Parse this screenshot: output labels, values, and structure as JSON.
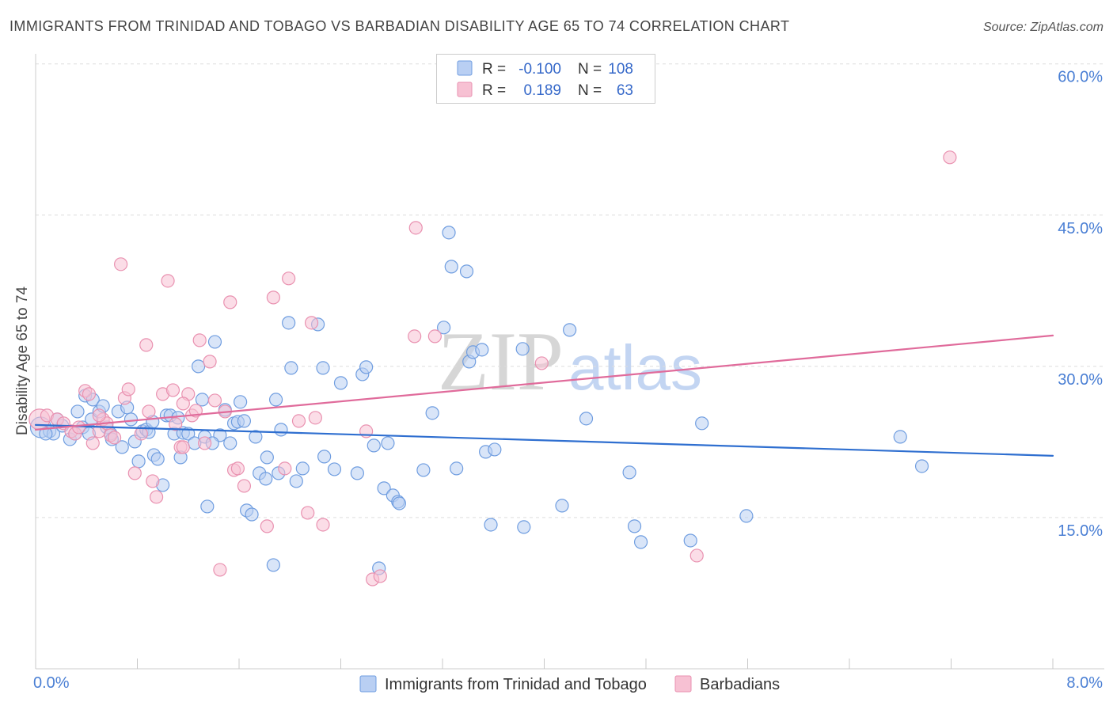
{
  "chart_data": {
    "type": "scatter",
    "title": "IMMIGRANTS FROM TRINIDAD AND TOBAGO VS BARBADIAN DISABILITY AGE 65 TO 74 CORRELATION CHART",
    "source": "Source: ZipAtlas.com",
    "xlabel": "",
    "ylabel": "Disability Age 65 to 74",
    "xlim": [
      0,
      8
    ],
    "ylim": [
      0,
      61
    ],
    "xticks": [
      0,
      0.8,
      1.6,
      2.4,
      3.2,
      4.0,
      4.8,
      5.6,
      6.4,
      7.2,
      8.0
    ],
    "xtick_labels": [
      "0.0%",
      "8.0%"
    ],
    "yticks": [
      15,
      30,
      45,
      60
    ],
    "ytick_labels": [
      "15.0%",
      "30.0%",
      "45.0%",
      "60.0%"
    ],
    "grid": true,
    "legend": {
      "location": "top-center",
      "r_label": "R =",
      "n_label": "N ="
    },
    "series": [
      {
        "name": "Immigrants from Trinidad and Tobago",
        "color": "#6f9de0",
        "fill": "#b9cff3",
        "line_color": "#2f6fd0",
        "r": "-0.100",
        "n": 108,
        "x": [
          0.04,
          0.11,
          0.14,
          0.21,
          0.27,
          0.33,
          0.37,
          0.39,
          0.44,
          0.45,
          0.5,
          0.53,
          0.56,
          0.59,
          0.6,
          0.65,
          0.68,
          0.72,
          0.75,
          0.78,
          0.81,
          0.84,
          0.87,
          0.89,
          0.93,
          0.96,
          1.0,
          1.03,
          1.06,
          1.09,
          1.12,
          1.14,
          1.16,
          1.2,
          1.25,
          1.28,
          1.31,
          1.33,
          1.35,
          1.41,
          1.45,
          1.49,
          1.53,
          1.56,
          1.59,
          1.61,
          1.64,
          1.66,
          1.7,
          1.73,
          1.76,
          1.81,
          1.82,
          1.87,
          1.89,
          1.91,
          1.93,
          1.99,
          2.01,
          2.05,
          2.1,
          2.22,
          2.26,
          2.27,
          2.35,
          2.4,
          2.53,
          2.57,
          2.6,
          2.66,
          2.7,
          2.74,
          2.77,
          2.81,
          2.85,
          2.86,
          3.05,
          3.12,
          3.21,
          3.25,
          3.27,
          3.31,
          3.39,
          3.41,
          3.44,
          3.51,
          3.54,
          3.58,
          3.61,
          3.83,
          3.84,
          4.14,
          4.2,
          4.33,
          4.67,
          4.71,
          4.76,
          5.15,
          5.24,
          5.59,
          6.8,
          6.97,
          0.08,
          0.17,
          0.31,
          0.42,
          0.92,
          1.39
        ],
        "y": [
          23.95,
          23.56,
          23.32,
          24.11,
          22.77,
          25.52,
          23.95,
          27.09,
          24.74,
          26.7,
          25.52,
          26.07,
          23.95,
          23.32,
          22.77,
          25.52,
          21.99,
          25.92,
          24.74,
          22.54,
          20.58,
          23.56,
          23.72,
          23.48,
          21.2,
          20.81,
          18.22,
          25.13,
          25.13,
          23.32,
          24.9,
          20.97,
          23.4,
          23.32,
          22.38,
          30.0,
          26.7,
          23.01,
          16.1,
          32.43,
          23.17,
          25.68,
          22.38,
          24.35,
          24.5,
          26.47,
          24.58,
          15.71,
          15.31,
          23.01,
          19.4,
          18.85,
          20.97,
          10.29,
          26.7,
          19.4,
          23.72,
          34.32,
          29.84,
          18.61,
          19.87,
          34.16,
          29.84,
          21.05,
          19.79,
          28.35,
          19.4,
          29.21,
          29.92,
          22.15,
          9.97,
          17.91,
          22.38,
          17.2,
          16.57,
          16.41,
          19.71,
          25.37,
          33.85,
          43.27,
          39.89,
          19.87,
          39.42,
          30.47,
          31.41,
          31.65,
          21.52,
          14.29,
          21.75,
          31.73,
          14.06,
          16.18,
          33.61,
          24.82,
          19.48,
          14.14,
          12.57,
          12.72,
          24.35,
          15.16,
          23.01,
          20.1,
          23.32,
          24.74,
          23.32,
          23.32,
          24.5,
          22.38
        ],
        "trend": {
          "x": [
            0,
            8
          ],
          "y": [
            24.19,
            21.13
          ]
        }
      },
      {
        "name": "Barbadians",
        "color": "#e991b0",
        "fill": "#f7c1d3",
        "line_color": "#e06b9b",
        "r": "0.189",
        "n": 63,
        "x": [
          0.03,
          0.09,
          0.17,
          0.22,
          0.28,
          0.31,
          0.34,
          0.39,
          0.42,
          0.45,
          0.5,
          0.53,
          0.56,
          0.59,
          0.62,
          0.67,
          0.7,
          0.73,
          0.78,
          0.83,
          0.87,
          0.89,
          0.92,
          0.95,
          1.0,
          1.04,
          1.08,
          1.1,
          1.14,
          1.16,
          1.2,
          1.23,
          1.26,
          1.29,
          1.33,
          1.37,
          1.41,
          1.45,
          1.49,
          1.53,
          1.56,
          1.59,
          1.64,
          1.82,
          1.87,
          1.96,
          1.99,
          2.07,
          2.14,
          2.17,
          2.2,
          2.26,
          2.6,
          2.65,
          2.71,
          2.99,
          2.98,
          3.14,
          3.98,
          5.2,
          7.19,
          0.5,
          1.16
        ],
        "y": [
          24.74,
          25.13,
          24.74,
          24.35,
          23.56,
          23.32,
          23.95,
          27.57,
          27.25,
          22.38,
          23.56,
          24.74,
          24.35,
          23.17,
          22.93,
          40.13,
          26.86,
          27.72,
          19.4,
          23.32,
          32.12,
          25.52,
          18.61,
          17.04,
          27.25,
          38.48,
          27.64,
          24.27,
          21.99,
          21.99,
          27.25,
          25.13,
          25.6,
          32.59,
          22.38,
          30.47,
          26.62,
          9.82,
          25.52,
          36.36,
          19.71,
          19.87,
          18.14,
          14.14,
          36.83,
          19.87,
          38.72,
          24.58,
          15.47,
          34.32,
          24.9,
          14.29,
          23.56,
          8.87,
          9.19,
          43.74,
          32.98,
          32.98,
          30.31,
          11.23,
          50.73,
          25.13,
          26.31
        ],
        "trend": {
          "x": [
            0,
            8
          ],
          "y": [
            23.72,
            33.06
          ]
        }
      }
    ]
  },
  "watermark": {
    "part1": "ZIP",
    "part2": "atlas"
  }
}
